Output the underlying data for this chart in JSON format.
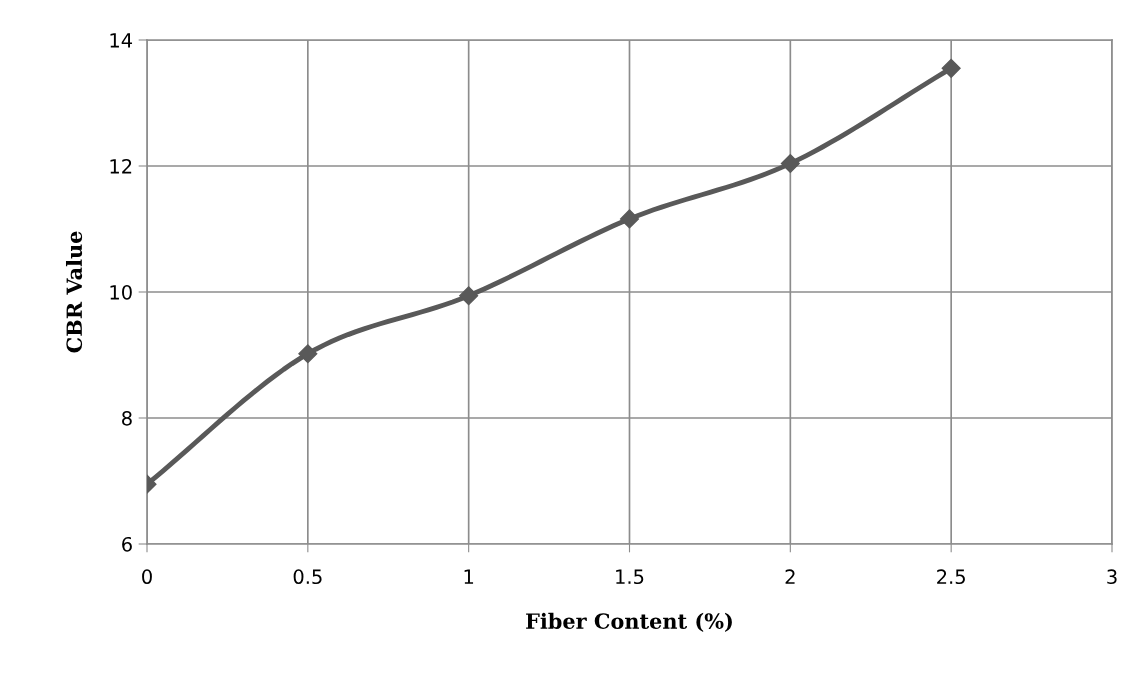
{
  "chart_data": {
    "type": "line",
    "xlabel": "Fiber Content (%)",
    "ylabel": "CBR Value",
    "x": [
      0,
      0.5,
      1,
      1.5,
      2,
      2.5
    ],
    "series": [
      {
        "color": "#595959",
        "values": [
          6.95,
          9.02,
          9.94,
          11.16,
          12.04,
          13.55
        ]
      }
    ],
    "xlim": [
      0,
      3
    ],
    "xticks": [
      0,
      0.5,
      1,
      1.5,
      2,
      2.5,
      3
    ],
    "ylim": [
      6,
      14
    ],
    "yticks": [
      6,
      8,
      10,
      12,
      14
    ],
    "grid": true,
    "marker": "diamond",
    "line_style": "solid"
  }
}
